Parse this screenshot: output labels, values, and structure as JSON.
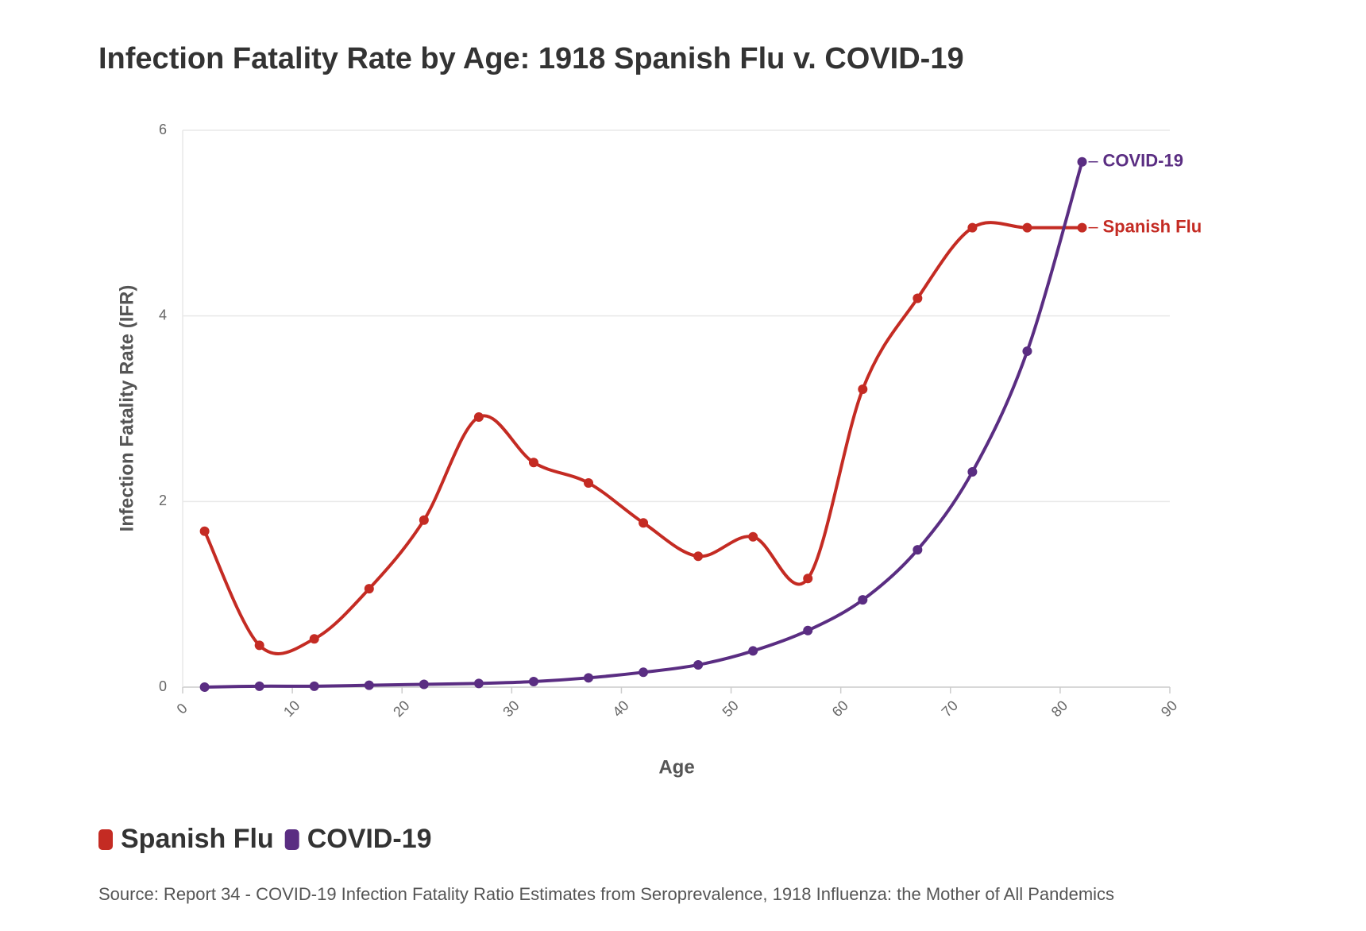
{
  "chart_data": {
    "type": "line",
    "title": "Infection Fatality Rate by Age: 1918 Spanish Flu v. COVID-19",
    "x_label": "Age",
    "y_label": "Infection Fatality Rate (IFR)",
    "x": [
      2,
      7,
      12,
      17,
      22,
      27,
      32,
      37,
      42,
      47,
      52,
      57,
      62,
      67,
      72,
      77,
      82
    ],
    "series": [
      {
        "name": "Spanish Flu",
        "color": "#c42b23",
        "values": [
          1.68,
          0.45,
          0.52,
          1.06,
          1.8,
          2.91,
          2.42,
          2.2,
          1.77,
          1.41,
          1.62,
          1.17,
          3.21,
          4.19,
          4.95,
          4.95,
          4.95
        ]
      },
      {
        "name": "COVID-19",
        "color": "#5a2d82",
        "values": [
          0,
          0.01,
          0.01,
          0.02,
          0.03,
          0.04,
          0.06,
          0.1,
          0.16,
          0.24,
          0.39,
          0.61,
          0.94,
          1.48,
          2.32,
          3.62,
          5.66
        ]
      }
    ],
    "xlim": [
      0,
      90
    ],
    "xticks": [
      0,
      10,
      20,
      30,
      40,
      50,
      60,
      70,
      80,
      90
    ],
    "ylim": [
      0,
      6
    ],
    "yticks": [
      0,
      2,
      4,
      6
    ],
    "grid": true,
    "source": "Source: Report 34 - COVID-19 Infection Fatality Ratio Estimates from Seroprevalence, 1918 Influenza: the Mother of All Pandemics"
  }
}
